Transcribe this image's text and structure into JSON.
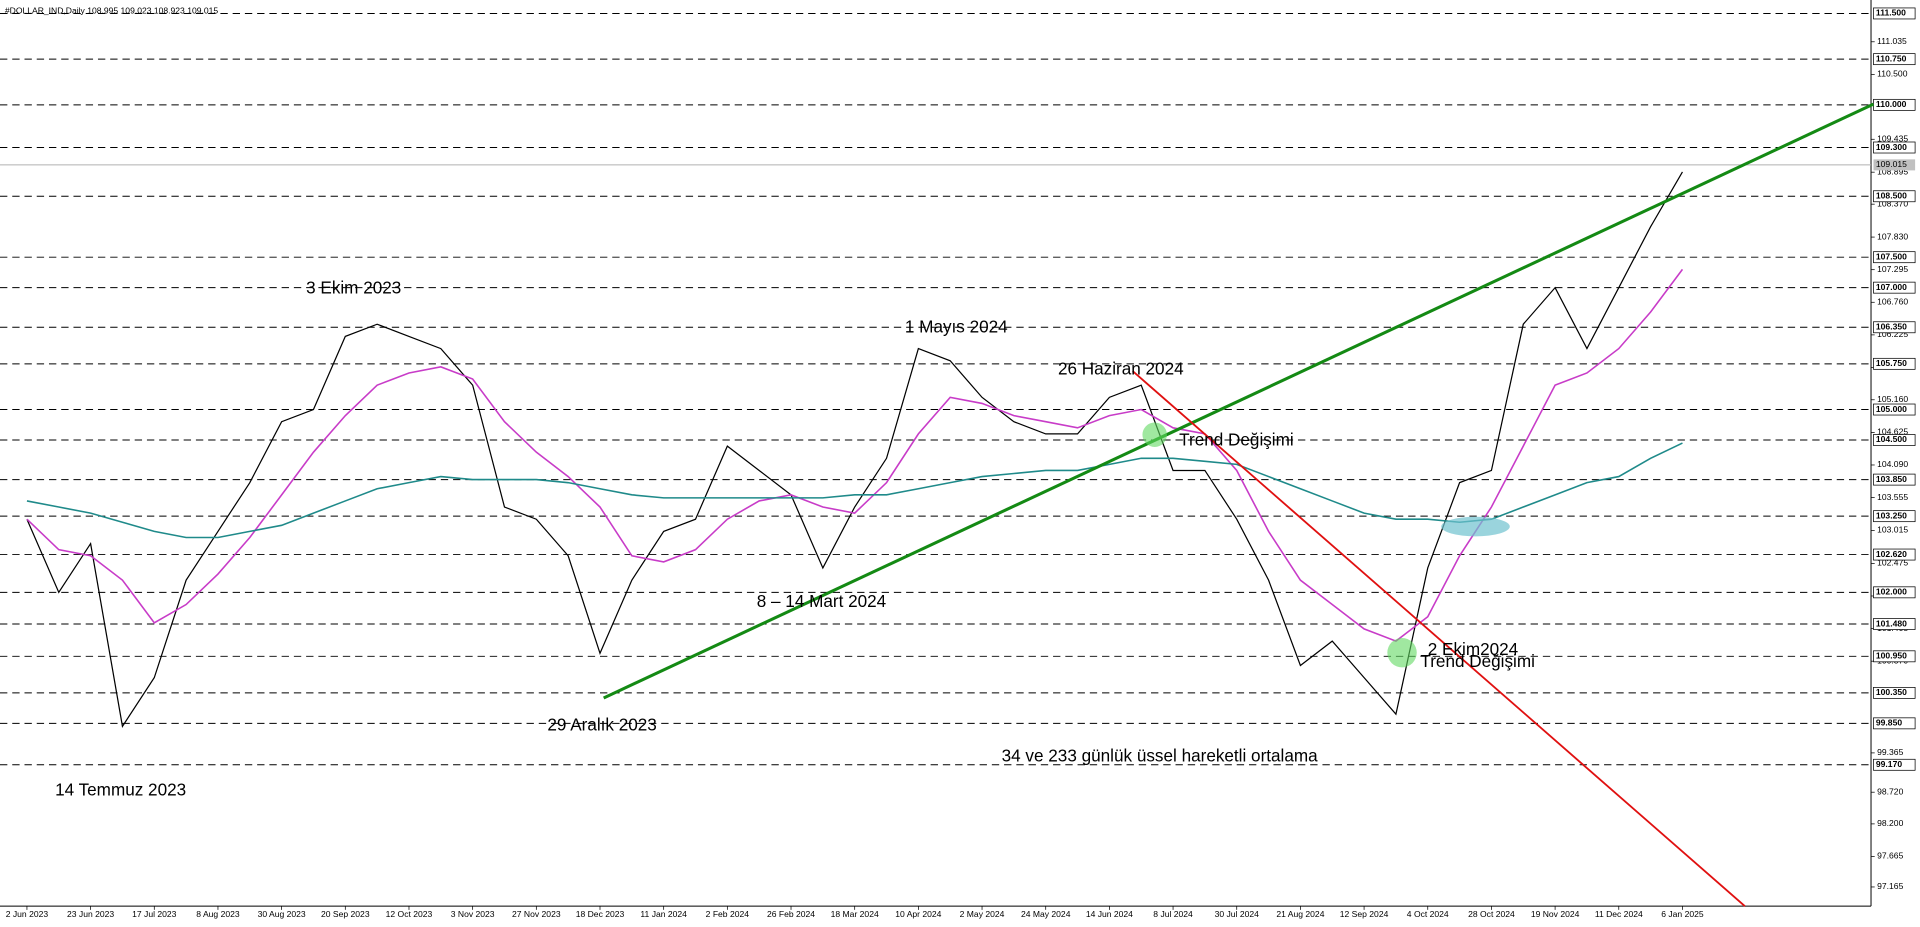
{
  "chart_data": {
    "type": "line",
    "title": "#DOLLAR_IND,Daily  108.995 109.023 108.923 109.015",
    "categories": [
      "2 Jun 2023",
      null,
      "23 Jun 2023",
      null,
      "17 Jul 2023",
      null,
      "8 Aug 2023",
      null,
      "30 Aug 2023",
      null,
      "20 Sep 2023",
      null,
      "12 Oct 2023",
      null,
      "3 Nov 2023",
      null,
      "27 Nov 2023",
      null,
      "18 Dec 2023",
      null,
      "11 Jan 2024",
      null,
      "2 Feb 2024",
      null,
      "26 Feb 2024",
      null,
      "18 Mar 2024",
      null,
      "10 Apr 2024",
      null,
      "2 May 2024",
      null,
      "24 May 2024",
      null,
      "14 Jun 2024",
      null,
      "8 Jul 2024",
      null,
      "30 Jul 2024",
      null,
      "21 Aug 2024",
      null,
      "12 Sep 2024",
      null,
      "4 Oct 2024",
      null,
      "28 Oct 2024",
      null,
      "19 Nov 2024",
      null,
      "11 Dec 2024",
      null,
      "6 Jan 2025"
    ],
    "series": [
      {
        "color": "#000000",
        "values": [
          103.2,
          102.0,
          102.8,
          99.8,
          100.6,
          102.2,
          103.0,
          103.8,
          104.8,
          105.0,
          106.2,
          106.4,
          106.2,
          106.0,
          105.4,
          103.4,
          103.2,
          102.6,
          101.0,
          102.2,
          103.0,
          103.2,
          104.4,
          104.0,
          103.6,
          102.4,
          103.4,
          104.2,
          106.0,
          105.8,
          105.2,
          104.8,
          104.6,
          104.6,
          105.2,
          105.4,
          104.0,
          104.0,
          103.2,
          102.2,
          100.8,
          101.2,
          100.6,
          100.0,
          102.4,
          103.8,
          104.0,
          106.4,
          107.0,
          106.0,
          107.0,
          108.0,
          108.9
        ]
      },
      {
        "color": "#c83cc8",
        "values": [
          103.2,
          102.7,
          102.6,
          102.2,
          101.5,
          101.8,
          102.3,
          102.9,
          103.6,
          104.3,
          104.9,
          105.4,
          105.6,
          105.7,
          105.5,
          104.8,
          104.3,
          103.9,
          103.4,
          102.6,
          102.5,
          102.7,
          103.2,
          103.5,
          103.6,
          103.4,
          103.3,
          103.8,
          104.6,
          105.2,
          105.1,
          104.9,
          104.8,
          104.7,
          104.9,
          105.0,
          104.7,
          104.6,
          104.0,
          103.0,
          102.2,
          101.8,
          101.4,
          101.2,
          101.6,
          102.6,
          103.4,
          104.4,
          105.4,
          105.6,
          106.0,
          106.6,
          107.3
        ]
      },
      {
        "color": "#1f8a8a",
        "values": [
          103.5,
          103.4,
          103.3,
          103.15,
          103.0,
          102.9,
          102.9,
          103.0,
          103.1,
          103.3,
          103.5,
          103.7,
          103.8,
          103.9,
          103.85,
          103.85,
          103.85,
          103.8,
          103.7,
          103.6,
          103.55,
          103.55,
          103.55,
          103.55,
          103.55,
          103.55,
          103.6,
          103.6,
          103.7,
          103.8,
          103.9,
          103.95,
          104.0,
          104.0,
          104.1,
          104.2,
          104.2,
          104.15,
          104.1,
          103.9,
          103.7,
          103.5,
          103.3,
          103.2,
          103.2,
          103.15,
          103.2,
          103.4,
          103.6,
          103.8,
          103.9,
          104.2,
          104.45
        ]
      }
    ],
    "ylim": [
      96.85,
      111.68
    ],
    "yticks": [
      {
        "value": 111.035,
        "label": "111.035"
      },
      {
        "value": 110.5,
        "label": "110.500"
      },
      {
        "value": 109.435,
        "label": "109.435"
      },
      {
        "value": 108.895,
        "label": "108.895"
      },
      {
        "value": 108.37,
        "label": "108.370"
      },
      {
        "value": 107.83,
        "label": "107.830"
      },
      {
        "value": 107.295,
        "label": "107.295"
      },
      {
        "value": 106.76,
        "label": "106.760"
      },
      {
        "value": 106.225,
        "label": "106.225"
      },
      {
        "value": 105.69,
        "label": "105.690"
      },
      {
        "value": 105.16,
        "label": "105.160"
      },
      {
        "value": 104.625,
        "label": "104.625"
      },
      {
        "value": 104.09,
        "label": "104.090"
      },
      {
        "value": 103.555,
        "label": "103.555"
      },
      {
        "value": 103.015,
        "label": "103.015"
      },
      {
        "value": 102.475,
        "label": "102.475"
      },
      {
        "value": 101.94,
        "label": "101.940"
      },
      {
        "value": 101.405,
        "label": "101.405"
      },
      {
        "value": 100.87,
        "label": "100.870"
      },
      {
        "value": 99.365,
        "label": "99.365"
      },
      {
        "value": 98.72,
        "label": "98.720"
      },
      {
        "value": 98.2,
        "label": "98.200"
      },
      {
        "value": 97.665,
        "label": "97.665"
      },
      {
        "value": 97.165,
        "label": "97.165"
      }
    ],
    "levels": [
      {
        "value": 111.5,
        "label": "111.500"
      },
      {
        "value": 110.75,
        "label": "110.750"
      },
      {
        "value": 110.0,
        "label": "110.000"
      },
      {
        "value": 109.3,
        "label": "109.300"
      },
      {
        "value": 108.5,
        "label": "108.500"
      },
      {
        "value": 107.5,
        "label": "107.500"
      },
      {
        "value": 107.0,
        "label": "107.000"
      },
      {
        "value": 106.35,
        "label": "106.350"
      },
      {
        "value": 105.75,
        "label": "105.750"
      },
      {
        "value": 105.0,
        "label": "105.000"
      },
      {
        "value": 104.5,
        "label": "104.500"
      },
      {
        "value": 103.85,
        "label": "103.850"
      },
      {
        "value": 103.25,
        "label": "103.250"
      },
      {
        "value": 102.62,
        "label": "102.620"
      },
      {
        "value": 102.0,
        "label": "102.000"
      },
      {
        "value": 101.48,
        "label": "101.480"
      },
      {
        "value": 100.95,
        "label": "100.950"
      },
      {
        "value": 100.35,
        "label": "100.350"
      },
      {
        "value": 99.85,
        "label": "99.850"
      },
      {
        "value": 99.17,
        "label": "99.170"
      }
    ],
    "current_price": {
      "value": 109.015,
      "label": "109.015"
    },
    "annotations": [
      "3 Ekim 2023",
      "14 Temmuz 2023",
      "29 Aralık 2023",
      "8 – 14 Mart 2024",
      "1 Mayıs 2024",
      "26 Haziran 2024",
      "Trend Değişimi",
      "2 Ekim2024",
      "Trend Değişimi",
      "34 ve 233 günlük üssel hareketli ortalama"
    ]
  }
}
